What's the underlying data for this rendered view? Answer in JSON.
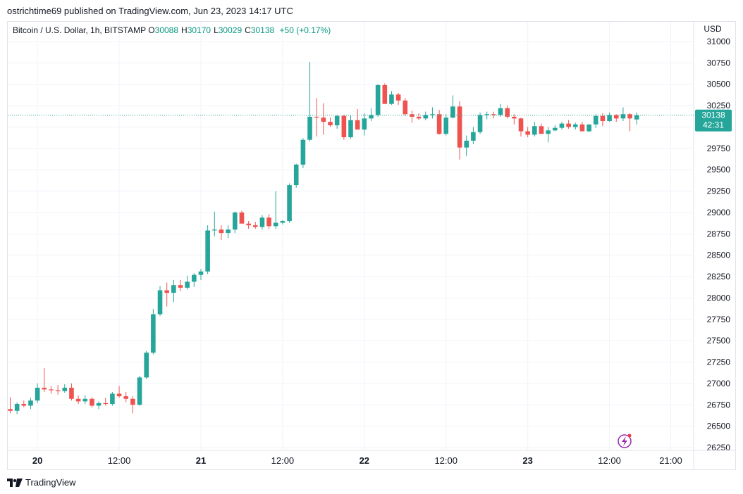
{
  "header": {
    "publish_line": "ostrichtime69 published on TradingView.com, Jun 23, 2023 14:17 UTC"
  },
  "legend": {
    "symbol": "Bitcoin / U.S. Dollar, 1h, BITSTAMP",
    "o_label": "O",
    "o_value": "30088",
    "h_label": "H",
    "h_value": "30170",
    "l_label": "L",
    "l_value": "30029",
    "c_label": "C",
    "c_value": "30138",
    "change": "+50 (+0.17%)"
  },
  "currency": "USD",
  "price_tag": {
    "price": "30138",
    "countdown": "42:31"
  },
  "footer": {
    "brand": "TradingView"
  },
  "colors": {
    "up": "#26a69a",
    "down": "#ef5350",
    "up_text": "#089981",
    "grid": "#f0f3fa",
    "axis_text": "#131722"
  },
  "chart_data": {
    "type": "candlestick",
    "title": "Bitcoin / U.S. Dollar, 1h, BITSTAMP",
    "ylabel": "USD",
    "ylim": [
      26250,
      31000
    ],
    "y_ticks": [
      26250,
      26500,
      26750,
      27000,
      27250,
      27500,
      27750,
      28000,
      28250,
      28500,
      28750,
      29000,
      29250,
      29500,
      29750,
      30000,
      30250,
      30500,
      30750,
      31000
    ],
    "x_ticks": [
      {
        "label": "20",
        "index": 4,
        "bold": true
      },
      {
        "label": "12:00",
        "index": 16,
        "bold": false
      },
      {
        "label": "21",
        "index": 28,
        "bold": true
      },
      {
        "label": "12:00",
        "index": 40,
        "bold": false
      },
      {
        "label": "22",
        "index": 52,
        "bold": true
      },
      {
        "label": "12:00",
        "index": 64,
        "bold": false
      },
      {
        "label": "23",
        "index": 76,
        "bold": true
      },
      {
        "label": "12:00",
        "index": 88,
        "bold": false
      },
      {
        "label": "21:00",
        "index": 97,
        "bold": false
      }
    ],
    "grid": true,
    "last_price": 30138,
    "candles": [
      [
        26700,
        26840,
        26650,
        26680
      ],
      [
        26680,
        26780,
        26640,
        26760
      ],
      [
        26760,
        26800,
        26720,
        26740
      ],
      [
        26740,
        26830,
        26700,
        26800
      ],
      [
        26800,
        27000,
        26770,
        26950
      ],
      [
        26950,
        27180,
        26900,
        26930
      ],
      [
        26930,
        26970,
        26880,
        26920
      ],
      [
        26920,
        26980,
        26870,
        26910
      ],
      [
        26910,
        26990,
        26890,
        26950
      ],
      [
        26950,
        27000,
        26800,
        26820
      ],
      [
        26820,
        26860,
        26760,
        26790
      ],
      [
        26790,
        26860,
        26760,
        26820
      ],
      [
        26820,
        26840,
        26720,
        26740
      ],
      [
        26740,
        26790,
        26700,
        26770
      ],
      [
        26770,
        26830,
        26740,
        26760
      ],
      [
        26760,
        26900,
        26740,
        26880
      ],
      [
        26880,
        26970,
        26830,
        26850
      ],
      [
        26850,
        26900,
        26780,
        26820
      ],
      [
        26820,
        26850,
        26650,
        26750
      ],
      [
        26750,
        27090,
        26740,
        27070
      ],
      [
        27070,
        27380,
        27050,
        27360
      ],
      [
        27360,
        27870,
        27340,
        27810
      ],
      [
        27810,
        28140,
        27790,
        28090
      ],
      [
        28090,
        28180,
        27900,
        28060
      ],
      [
        28060,
        28210,
        27950,
        28150
      ],
      [
        28150,
        28210,
        28080,
        28120
      ],
      [
        28120,
        28260,
        28100,
        28190
      ],
      [
        28190,
        28290,
        28130,
        28270
      ],
      [
        28270,
        28340,
        28210,
        28310
      ],
      [
        28310,
        28850,
        28280,
        28790
      ],
      [
        28790,
        29010,
        28720,
        28800
      ],
      [
        28800,
        28850,
        28680,
        28760
      ],
      [
        28760,
        28850,
        28700,
        28800
      ],
      [
        28800,
        29010,
        28760,
        29000
      ],
      [
        29000,
        29020,
        28880,
        28870
      ],
      [
        28870,
        28900,
        28810,
        28850
      ],
      [
        28850,
        28890,
        28810,
        28830
      ],
      [
        28830,
        28970,
        28800,
        28940
      ],
      [
        28940,
        28980,
        28810,
        28840
      ],
      [
        28840,
        29250,
        28810,
        28880
      ],
      [
        28880,
        28910,
        28860,
        28900
      ],
      [
        28900,
        29340,
        28880,
        29320
      ],
      [
        29320,
        29570,
        29290,
        29560
      ],
      [
        29560,
        29870,
        29520,
        29850
      ],
      [
        29850,
        30760,
        29830,
        30120
      ],
      [
        30120,
        30340,
        29890,
        30110
      ],
      [
        30110,
        30280,
        29910,
        30060
      ],
      [
        30060,
        30110,
        30000,
        30020
      ],
      [
        30020,
        30140,
        29980,
        30130
      ],
      [
        30130,
        30140,
        29850,
        29880
      ],
      [
        29880,
        30140,
        29860,
        30080
      ],
      [
        30080,
        30210,
        29980,
        29970
      ],
      [
        29970,
        30160,
        29900,
        30100
      ],
      [
        30100,
        30220,
        30070,
        30140
      ],
      [
        30140,
        30500,
        30120,
        30490
      ],
      [
        30490,
        30510,
        30280,
        30270
      ],
      [
        30270,
        30420,
        30260,
        30380
      ],
      [
        30380,
        30400,
        30260,
        30310
      ],
      [
        30310,
        30340,
        30130,
        30150
      ],
      [
        30150,
        30190,
        30050,
        30120
      ],
      [
        30120,
        30160,
        30080,
        30100
      ],
      [
        30100,
        30180,
        30080,
        30140
      ],
      [
        30140,
        30230,
        30100,
        30150
      ],
      [
        30150,
        30200,
        29910,
        29920
      ],
      [
        29920,
        30150,
        29900,
        30110
      ],
      [
        30110,
        30370,
        30100,
        30240
      ],
      [
        30240,
        30300,
        29620,
        29760
      ],
      [
        29760,
        29900,
        29660,
        29840
      ],
      [
        29840,
        30000,
        29800,
        29940
      ],
      [
        29940,
        30170,
        29920,
        30140
      ],
      [
        30140,
        30180,
        30090,
        30150
      ],
      [
        30150,
        30180,
        30100,
        30140
      ],
      [
        30140,
        30270,
        30120,
        30220
      ],
      [
        30220,
        30250,
        30100,
        30120
      ],
      [
        30120,
        30150,
        30030,
        30100
      ],
      [
        30100,
        30110,
        29890,
        29950
      ],
      [
        29950,
        30000,
        29880,
        29910
      ],
      [
        29910,
        30060,
        29890,
        30010
      ],
      [
        30010,
        30040,
        29920,
        29920
      ],
      [
        29920,
        30000,
        29820,
        29960
      ],
      [
        29960,
        30020,
        29950,
        29990
      ],
      [
        29990,
        30060,
        29970,
        30040
      ],
      [
        30040,
        30080,
        29980,
        30000
      ],
      [
        30000,
        30050,
        29970,
        30030
      ],
      [
        30030,
        30060,
        29950,
        29950
      ],
      [
        29950,
        30030,
        29940,
        30030
      ],
      [
        30030,
        30150,
        29990,
        30130
      ],
      [
        30130,
        30160,
        30010,
        30070
      ],
      [
        30070,
        30170,
        30060,
        30140
      ],
      [
        30140,
        30150,
        30060,
        30100
      ],
      [
        30100,
        30230,
        30070,
        30150
      ],
      [
        30150,
        30160,
        29950,
        30100
      ],
      [
        30088,
        30170,
        30029,
        30138
      ]
    ]
  }
}
